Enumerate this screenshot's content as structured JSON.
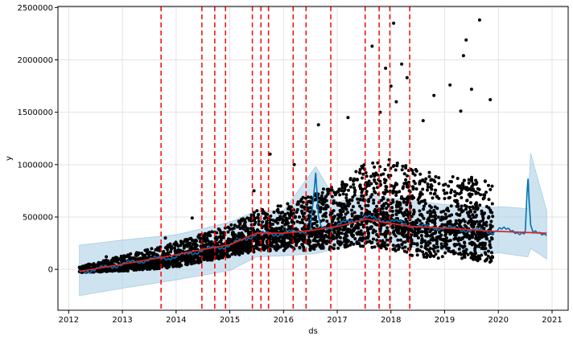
{
  "chart_data": {
    "type": "line",
    "title": "",
    "xlabel": "ds",
    "ylabel": "y",
    "grid": true,
    "xlim": [
      2011.8,
      2021.3
    ],
    "ylim": [
      -390000,
      2510000
    ],
    "x_ticks": [
      2012,
      2013,
      2014,
      2015,
      2016,
      2017,
      2018,
      2019,
      2020,
      2021
    ],
    "x_tick_labels": [
      "2012",
      "2013",
      "2014",
      "2015",
      "2016",
      "2017",
      "2018",
      "2019",
      "2020",
      "2021"
    ],
    "y_ticks": [
      0,
      500000,
      1000000,
      1500000,
      2000000,
      2500000
    ],
    "y_tick_labels": [
      "0",
      "500000",
      "1000000",
      "1500000",
      "2000000",
      "2500000"
    ],
    "colors": {
      "forecast": "#0072B2",
      "interval": "#A6CCE3",
      "observed": "#000000",
      "trend": "#D62728",
      "changepoint": "#FF0000",
      "grid": "#E3E3E3"
    },
    "series": [
      {
        "role": "forecast",
        "x": [
          2012.2,
          2012.5,
          2013.0,
          2013.5,
          2014.0,
          2014.5,
          2015.0,
          2015.5,
          2016.0,
          2016.5,
          2016.6,
          2016.65,
          2016.7,
          2017.0,
          2017.5,
          2018.0,
          2018.5,
          2019.0,
          2019.5,
          2019.9,
          2020.0,
          2020.5,
          2020.55,
          2020.6,
          2020.65,
          2020.7,
          2020.9
        ],
        "y": [
          -20000,
          0,
          50000,
          95000,
          120000,
          185000,
          230000,
          340000,
          340000,
          380000,
          900000,
          500000,
          390000,
          420000,
          500000,
          460000,
          410000,
          395000,
          375000,
          360000,
          385000,
          350000,
          880000,
          400000,
          340000,
          350000,
          350000
        ]
      },
      {
        "role": "interval_upper",
        "x": [
          2012.2,
          2013.0,
          2014.0,
          2015.0,
          2015.5,
          2016.0,
          2016.6,
          2017.0,
          2017.5,
          2018.0,
          2019.0,
          2019.9,
          2020.0,
          2020.55,
          2020.6,
          2020.9
        ],
        "y": [
          230000,
          280000,
          330000,
          450000,
          560000,
          560000,
          980000,
          640000,
          720000,
          680000,
          620000,
          590000,
          600000,
          580000,
          1110000,
          560000
        ]
      },
      {
        "role": "interval_lower",
        "x": [
          2012.2,
          2013.0,
          2014.0,
          2015.0,
          2015.5,
          2016.0,
          2016.6,
          2017.0,
          2017.5,
          2018.0,
          2019.0,
          2019.9,
          2020.0,
          2020.55,
          2020.6,
          2020.9
        ],
        "y": [
          -250000,
          -180000,
          -100000,
          -10000,
          120000,
          130000,
          150000,
          200000,
          260000,
          230000,
          180000,
          150000,
          160000,
          120000,
          200000,
          100000
        ]
      },
      {
        "role": "trend",
        "x": [
          2012.2,
          2013.0,
          2013.7,
          2014.5,
          2015.0,
          2015.5,
          2016.0,
          2016.5,
          2017.0,
          2017.55,
          2017.8,
          2018.0,
          2018.35,
          2019.0,
          2019.9,
          2020.9
        ],
        "y": [
          -20000,
          50000,
          110000,
          190000,
          235000,
          345000,
          345000,
          370000,
          410000,
          480000,
          455000,
          440000,
          410000,
          395000,
          365000,
          345000
        ]
      },
      {
        "role": "observed",
        "outliers": [
          [
            2019.65,
            2380000
          ],
          [
            2017.65,
            2130000
          ],
          [
            2018.05,
            2350000
          ],
          [
            2019.4,
            2190000
          ],
          [
            2019.35,
            2040000
          ],
          [
            2018.2,
            1960000
          ],
          [
            2017.9,
            1920000
          ],
          [
            2018.0,
            1750000
          ],
          [
            2018.3,
            1830000
          ],
          [
            2019.1,
            1760000
          ],
          [
            2019.5,
            1720000
          ],
          [
            2018.8,
            1660000
          ],
          [
            2019.85,
            1620000
          ],
          [
            2016.65,
            1380000
          ],
          [
            2017.2,
            1450000
          ],
          [
            2017.8,
            1500000
          ],
          [
            2018.1,
            1600000
          ],
          [
            2018.6,
            1420000
          ],
          [
            2019.3,
            1510000
          ],
          [
            2015.75,
            1100000
          ],
          [
            2016.2,
            1000000
          ],
          [
            2015.45,
            750000
          ],
          [
            2014.3,
            490000
          ],
          [
            2013.8,
            300000
          ],
          [
            2012.7,
            120000
          ]
        ],
        "envelope": {
          "x": [
            2012.2,
            2013.0,
            2014.0,
            2015.0,
            2015.5,
            2016.0,
            2016.5,
            2017.0,
            2017.5,
            2018.0,
            2018.5,
            2019.0,
            2019.5,
            2019.9
          ],
          "upper": [
            30000,
            130000,
            260000,
            420000,
            560000,
            620000,
            720000,
            820000,
            1000000,
            1050000,
            950000,
            900000,
            880000,
            850000
          ],
          "lower": [
            -30000,
            -20000,
            20000,
            120000,
            170000,
            180000,
            170000,
            200000,
            220000,
            180000,
            110000,
            100000,
            90000,
            60000
          ]
        }
      }
    ],
    "changepoints": [
      2013.72,
      2014.48,
      2014.72,
      2014.92,
      2015.42,
      2015.58,
      2015.72,
      2016.18,
      2016.42,
      2016.88,
      2017.52,
      2017.78,
      2017.98,
      2018.35
    ]
  }
}
